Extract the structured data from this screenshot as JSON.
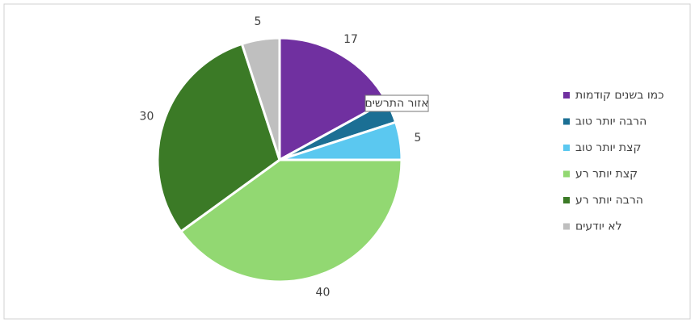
{
  "chart_data": {
    "type": "pie",
    "categories": [
      "כמו בשנים קודמות",
      "הרבה יותר טוב",
      "קצת יותר טוב",
      "קצת יותר רע",
      "הרבה יותר רע",
      "לא יודעים"
    ],
    "values": [
      17,
      3,
      5,
      40,
      30,
      5
    ],
    "colors": [
      "#7030a0",
      "#1b6f94",
      "#5bc8f0",
      "#92d872",
      "#3b7a26",
      "#bfbfbf"
    ],
    "legend": "right",
    "tooltip": "אזור התרשים"
  }
}
